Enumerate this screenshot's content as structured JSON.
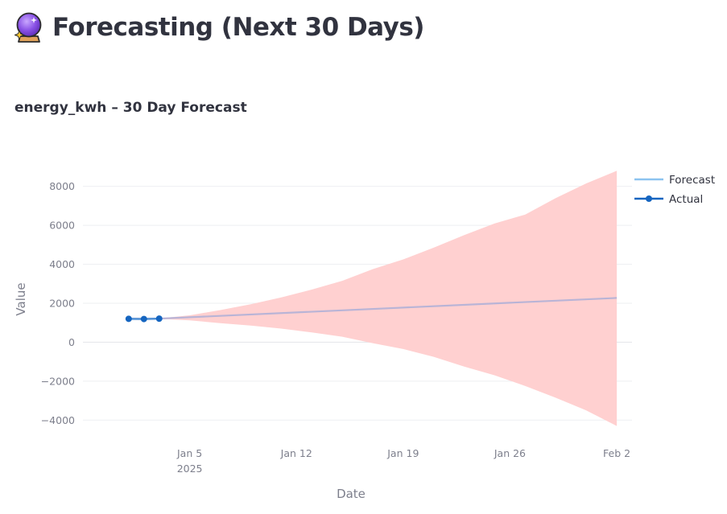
{
  "header": {
    "title": "Forecasting (Next 30 Days)",
    "icon": "crystal-ball-icon"
  },
  "chart_title": "energy_kwh – 30 Day Forecast",
  "chart_data": {
    "type": "line",
    "title": "energy_kwh – 30 Day Forecast",
    "xlabel": "Date",
    "ylabel": "Value",
    "x_axis": {
      "type": "date",
      "range": [
        "2024-12-29",
        "2025-02-03"
      ],
      "ticks": [
        {
          "date": "2025-01-05",
          "label": "Jan 5",
          "sublabel": "2025"
        },
        {
          "date": "2025-01-12",
          "label": "Jan 12",
          "sublabel": ""
        },
        {
          "date": "2025-01-19",
          "label": "Jan 19",
          "sublabel": ""
        },
        {
          "date": "2025-01-26",
          "label": "Jan 26",
          "sublabel": ""
        },
        {
          "date": "2025-02-02",
          "label": "Feb 2",
          "sublabel": ""
        }
      ]
    },
    "y_axis": {
      "range": [
        -4400,
        9100
      ],
      "ticks": [
        8000,
        6000,
        4000,
        2000,
        0,
        -2000,
        -4000
      ],
      "tick_labels": [
        "8000",
        "6000",
        "4000",
        "2000",
        "0",
        "−2000",
        "−4000"
      ]
    },
    "grid": true,
    "legend": {
      "placement": "top-right",
      "items": [
        {
          "label": "Forecast",
          "color": "#8cc3f0",
          "marker": false
        },
        {
          "label": "Actual",
          "color": "#1565c0",
          "marker": true
        }
      ]
    },
    "series": [
      {
        "name": "Actual",
        "color": "#1565c0",
        "points": [
          {
            "x": "2025-01-01",
            "y": 1200
          },
          {
            "x": "2025-01-02",
            "y": 1190
          },
          {
            "x": "2025-01-03",
            "y": 1210
          }
        ]
      },
      {
        "name": "Forecast",
        "color": "#8cc3f0",
        "points": [
          {
            "x": "2025-01-01",
            "y": 1200
          },
          {
            "x": "2025-01-03",
            "y": 1210
          },
          {
            "x": "2025-02-02",
            "y": 2270
          }
        ]
      }
    ],
    "band": {
      "color": "#ffd0d0",
      "points": [
        {
          "x": "2025-01-03",
          "upper": 1220,
          "lower": 1200
        },
        {
          "x": "2025-01-05",
          "upper": 1380,
          "lower": 1120
        },
        {
          "x": "2025-01-07",
          "upper": 1650,
          "lower": 980
        },
        {
          "x": "2025-01-09",
          "upper": 1950,
          "lower": 850
        },
        {
          "x": "2025-01-11",
          "upper": 2300,
          "lower": 700
        },
        {
          "x": "2025-01-13",
          "upper": 2700,
          "lower": 500
        },
        {
          "x": "2025-01-15",
          "upper": 3150,
          "lower": 280
        },
        {
          "x": "2025-01-17",
          "upper": 3750,
          "lower": -50
        },
        {
          "x": "2025-01-19",
          "upper": 4250,
          "lower": -350
        },
        {
          "x": "2025-01-21",
          "upper": 4850,
          "lower": -750
        },
        {
          "x": "2025-01-23",
          "upper": 5500,
          "lower": -1250
        },
        {
          "x": "2025-01-25",
          "upper": 6100,
          "lower": -1700
        },
        {
          "x": "2025-01-27",
          "upper": 6550,
          "lower": -2250
        },
        {
          "x": "2025-01-29",
          "upper": 7400,
          "lower": -2850
        },
        {
          "x": "2025-01-31",
          "upper": 8150,
          "lower": -3500
        },
        {
          "x": "2025-02-02",
          "upper": 8800,
          "lower": -4300
        }
      ]
    }
  }
}
